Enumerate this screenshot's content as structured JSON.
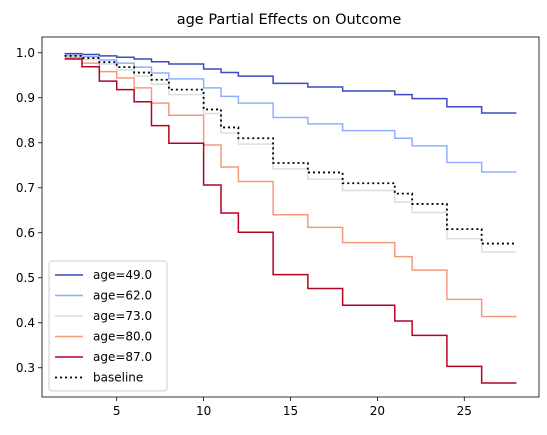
{
  "chart_data": {
    "type": "line",
    "step": true,
    "title": "age Partial Effects on Outcome",
    "xlabel": "",
    "ylabel": "",
    "xlim": [
      0.7,
      29.3
    ],
    "ylim": [
      0.235,
      1.035
    ],
    "x_ticks": [
      5,
      10,
      15,
      20,
      25
    ],
    "y_ticks": [
      0.3,
      0.4,
      0.5,
      0.6,
      0.7,
      0.8,
      0.9,
      1.0
    ],
    "x_tick_labels": [
      "5",
      "10",
      "15",
      "20",
      "25"
    ],
    "y_tick_labels": [
      "0.3",
      "0.4",
      "0.5",
      "0.6",
      "0.7",
      "0.8",
      "0.9",
      "1.0"
    ],
    "grid": false,
    "legend_position": "lower-left",
    "x": [
      2,
      3,
      4,
      5,
      6,
      7,
      8,
      10,
      11,
      12,
      14,
      16,
      18,
      21,
      22,
      24,
      26,
      28
    ],
    "series": [
      {
        "name": "age=49.0",
        "color": "#3b4cc0",
        "dash": "solid",
        "values": [
          0.998,
          0.996,
          0.993,
          0.99,
          0.986,
          0.98,
          0.975,
          0.964,
          0.956,
          0.948,
          0.932,
          0.924,
          0.915,
          0.907,
          0.898,
          0.88,
          0.866,
          0.866
        ]
      },
      {
        "name": "age=62.0",
        "color": "#8db0fe",
        "dash": "solid",
        "values": [
          0.995,
          0.991,
          0.984,
          0.977,
          0.968,
          0.955,
          0.942,
          0.922,
          0.903,
          0.888,
          0.856,
          0.842,
          0.827,
          0.81,
          0.793,
          0.756,
          0.735,
          0.735
        ]
      },
      {
        "name": "age=73.0",
        "color": "#dddddd",
        "dash": "solid",
        "values": [
          0.992,
          0.985,
          0.975,
          0.962,
          0.948,
          0.93,
          0.907,
          0.865,
          0.822,
          0.797,
          0.742,
          0.719,
          0.694,
          0.668,
          0.645,
          0.587,
          0.557,
          0.557
        ]
      },
      {
        "name": "age=80.0",
        "color": "#f49a7b",
        "dash": "solid",
        "values": [
          0.989,
          0.977,
          0.958,
          0.944,
          0.922,
          0.888,
          0.861,
          0.795,
          0.746,
          0.714,
          0.64,
          0.612,
          0.578,
          0.547,
          0.517,
          0.452,
          0.414,
          0.414
        ]
      },
      {
        "name": "age=87.0",
        "color": "#b40426",
        "dash": "solid",
        "values": [
          0.986,
          0.969,
          0.937,
          0.918,
          0.891,
          0.838,
          0.799,
          0.706,
          0.644,
          0.601,
          0.507,
          0.476,
          0.439,
          0.404,
          0.372,
          0.303,
          0.266,
          0.266
        ]
      },
      {
        "name": "baseline",
        "color": "#000000",
        "dash": "dotted",
        "values": [
          0.993,
          0.988,
          0.979,
          0.968,
          0.956,
          0.94,
          0.918,
          0.874,
          0.834,
          0.81,
          0.755,
          0.734,
          0.71,
          0.687,
          0.664,
          0.608,
          0.576,
          0.576
        ]
      }
    ]
  }
}
